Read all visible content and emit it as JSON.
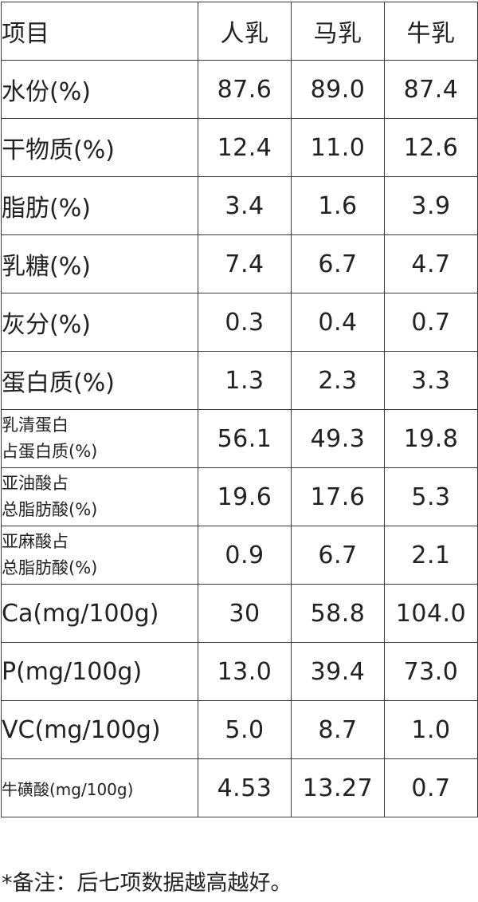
{
  "table": {
    "headers": [
      "项目",
      "人乳",
      "马乳",
      "牛乳"
    ],
    "rows": [
      {
        "label": "水份(%)",
        "human": "87.6",
        "horse": "89.0",
        "cow": "87.4"
      },
      {
        "label": "干物质(%)",
        "human": "12.4",
        "horse": "11.0",
        "cow": "12.6"
      },
      {
        "label": "脂肪(%)",
        "human": "3.4",
        "horse": "1.6",
        "cow": "3.9"
      },
      {
        "label": "乳糖(%)",
        "human": "7.4",
        "horse": "6.7",
        "cow": "4.7"
      },
      {
        "label": "灰分(%)",
        "human": "0.3",
        "horse": "0.4",
        "cow": "0.7"
      },
      {
        "label": "蛋白质(%)",
        "human": "1.3",
        "horse": "2.3",
        "cow": "3.3"
      },
      {
        "label_line1": "乳清蛋白",
        "label_line2": "占蛋白质(%)",
        "human": "56.1",
        "horse": "49.3",
        "cow": "19.8"
      },
      {
        "label_line1": "亚油酸占",
        "label_line2": "总脂肪酸(%)",
        "human": "19.6",
        "horse": "17.6",
        "cow": "5.3"
      },
      {
        "label_line1": "亚麻酸占",
        "label_line2": "总脂肪酸(%)",
        "human": "0.9",
        "horse": "6.7",
        "cow": "2.1"
      },
      {
        "label": "Ca(mg/100g)",
        "human": "30",
        "horse": "58.8",
        "cow": "104.0"
      },
      {
        "label": "P(mg/100g)",
        "human": "13.0",
        "horse": "39.4",
        "cow": "73.0"
      },
      {
        "label": "VC(mg/100g)",
        "human": "5.0",
        "horse": "8.7",
        "cow": "1.0"
      },
      {
        "label": "牛磺酸(mg/100g)",
        "human": "4.53",
        "horse": "13.27",
        "cow": "0.7"
      }
    ]
  },
  "footnote": "*备注：后七项数据越高越好。"
}
